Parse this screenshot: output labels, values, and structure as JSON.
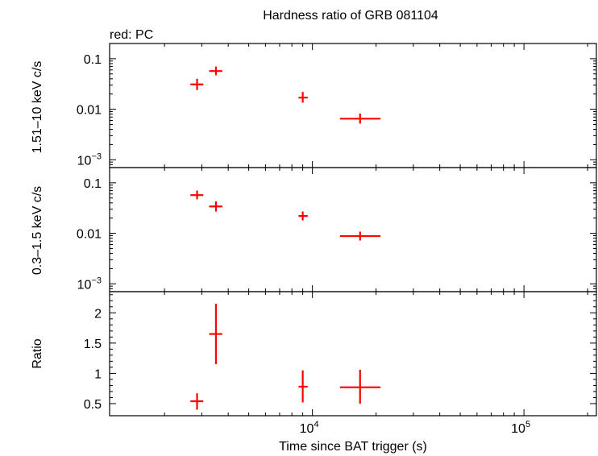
{
  "chart_data": {
    "type": "scatter",
    "title": "Hardness ratio of GRB 081104",
    "subtitle": "red: PC",
    "xlabel": "Time since BAT trigger (s)",
    "xscale": "log",
    "xlim": [
      1100,
      220000
    ],
    "x_tick_labels": [
      {
        "value": 10000,
        "base": "10",
        "exp": "4"
      },
      {
        "value": 100000,
        "base": "10",
        "exp": "5"
      }
    ],
    "color": "#ff0000",
    "panels": [
      {
        "id": "hard",
        "ylabel": "1.51–10 keV c/s",
        "yscale": "log",
        "ylim": [
          0.0007,
          0.2
        ],
        "yticks": [
          {
            "value": 0.1,
            "label": "0.1"
          },
          {
            "value": 0.01,
            "label": "0.01"
          },
          {
            "value": 0.001,
            "label": "10",
            "exp": "−3"
          }
        ],
        "points": [
          {
            "x": 2850,
            "xerr": [
              2650,
              3050
            ],
            "y": 0.031,
            "yerr": [
              0.024,
              0.04
            ]
          },
          {
            "x": 3500,
            "xerr": [
              3250,
              3750
            ],
            "y": 0.057,
            "yerr": [
              0.047,
              0.07
            ]
          },
          {
            "x": 9000,
            "xerr": [
              8600,
              9500
            ],
            "y": 0.017,
            "yerr": [
              0.0135,
              0.022
            ]
          },
          {
            "x": 16800,
            "xerr": [
              13500,
              21000
            ],
            "y": 0.0065,
            "yerr": [
              0.0052,
              0.0082
            ]
          }
        ]
      },
      {
        "id": "soft",
        "ylabel": "0.3–1.5 keV c/s",
        "yscale": "log",
        "ylim": [
          0.0007,
          0.2
        ],
        "yticks": [
          {
            "value": 0.1,
            "label": "0.1"
          },
          {
            "value": 0.01,
            "label": "0.01"
          },
          {
            "value": 0.001,
            "label": "10",
            "exp": "−3"
          }
        ],
        "points": [
          {
            "x": 2850,
            "xerr": [
              2650,
              3050
            ],
            "y": 0.057,
            "yerr": [
              0.047,
              0.07
            ]
          },
          {
            "x": 3500,
            "xerr": [
              3250,
              3750
            ],
            "y": 0.034,
            "yerr": [
              0.027,
              0.043
            ]
          },
          {
            "x": 9000,
            "xerr": [
              8600,
              9500
            ],
            "y": 0.022,
            "yerr": [
              0.018,
              0.027
            ]
          },
          {
            "x": 16800,
            "xerr": [
              13500,
              21000
            ],
            "y": 0.0088,
            "yerr": [
              0.0072,
              0.0108
            ]
          }
        ]
      },
      {
        "id": "ratio",
        "ylabel": "Ratio",
        "yscale": "linear",
        "ylim": [
          0.3,
          2.35
        ],
        "yticks": [
          {
            "value": 0.5,
            "label": "0.5"
          },
          {
            "value": 1,
            "label": "1"
          },
          {
            "value": 1.5,
            "label": "1.5"
          },
          {
            "value": 2,
            "label": "2"
          }
        ],
        "points": [
          {
            "x": 2850,
            "xerr": [
              2650,
              3050
            ],
            "y": 0.54,
            "yerr": [
              0.4,
              0.67
            ]
          },
          {
            "x": 3500,
            "xerr": [
              3250,
              3750
            ],
            "y": 1.65,
            "yerr": [
              1.15,
              2.15
            ]
          },
          {
            "x": 9000,
            "xerr": [
              8600,
              9500
            ],
            "y": 0.78,
            "yerr": [
              0.52,
              1.05
            ]
          },
          {
            "x": 16800,
            "xerr": [
              13500,
              21000
            ],
            "y": 0.77,
            "yerr": [
              0.5,
              1.06
            ]
          }
        ]
      }
    ]
  }
}
